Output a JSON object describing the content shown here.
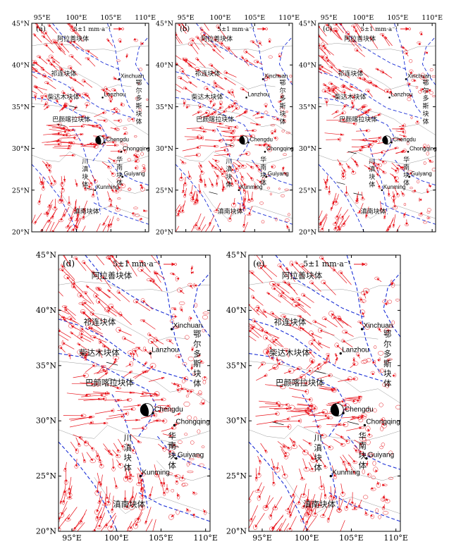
{
  "colors": {
    "vector": "#e8141c",
    "fault": "#1a2fd6",
    "border": "#9a9a9a",
    "frame": "#000000",
    "mechanism": "#000000"
  },
  "icons": {
    "focal_mechanism": "beachball-icon",
    "city_marker": "dot-icon"
  },
  "map_extent": {
    "lon": [
      93.5,
      110.5
    ],
    "lat": [
      20,
      45
    ]
  },
  "axes": {
    "lat_ticks": [
      "20°N",
      "25°N",
      "30°N",
      "35°N",
      "40°N",
      "45°N"
    ],
    "lon_ticks": [
      "95°E",
      "100°E",
      "105°E",
      "110°E"
    ]
  },
  "scale_label": "5±1 mm·a⁻¹",
  "blocks": {
    "alashan": "阿拉善块体",
    "qilian": "祁连块体",
    "qaidam": "柴达木块体",
    "bayanhar": "巴颜喀拉块体",
    "ordos": "鄂尔多斯块体",
    "ordos_chars": [
      "鄂",
      "尔",
      "多",
      "斯",
      "块",
      "体"
    ],
    "south_china": "华南块体",
    "south_china_chars": [
      "华",
      "南",
      "块",
      "体"
    ],
    "chuandian": "川滇块体",
    "chuandian_chars": [
      "川",
      "滇",
      "块",
      "体"
    ],
    "diannan": "滇南块体"
  },
  "cities": [
    {
      "name": "Xinchuan",
      "lon": 106.2,
      "lat": 38.3
    },
    {
      "name": "Lanzhou",
      "lon": 103.8,
      "lat": 36.1
    },
    {
      "name": "Chengdu",
      "lon": 104.1,
      "lat": 30.7
    },
    {
      "name": "Chongqing",
      "lon": 106.5,
      "lat": 29.6
    },
    {
      "name": "Guiyang",
      "lon": 106.7,
      "lat": 26.6
    },
    {
      "name": "Kunming",
      "lon": 102.7,
      "lat": 25.0
    }
  ],
  "epicenter": {
    "lon": 103.4,
    "lat": 31.0
  },
  "panels": [
    {
      "id": "a",
      "label": "(a)"
    },
    {
      "id": "b",
      "label": "(b)"
    },
    {
      "id": "c",
      "label": "(c)"
    },
    {
      "id": "d",
      "label": "(d)"
    },
    {
      "id": "e",
      "label": "(e)"
    }
  ]
}
